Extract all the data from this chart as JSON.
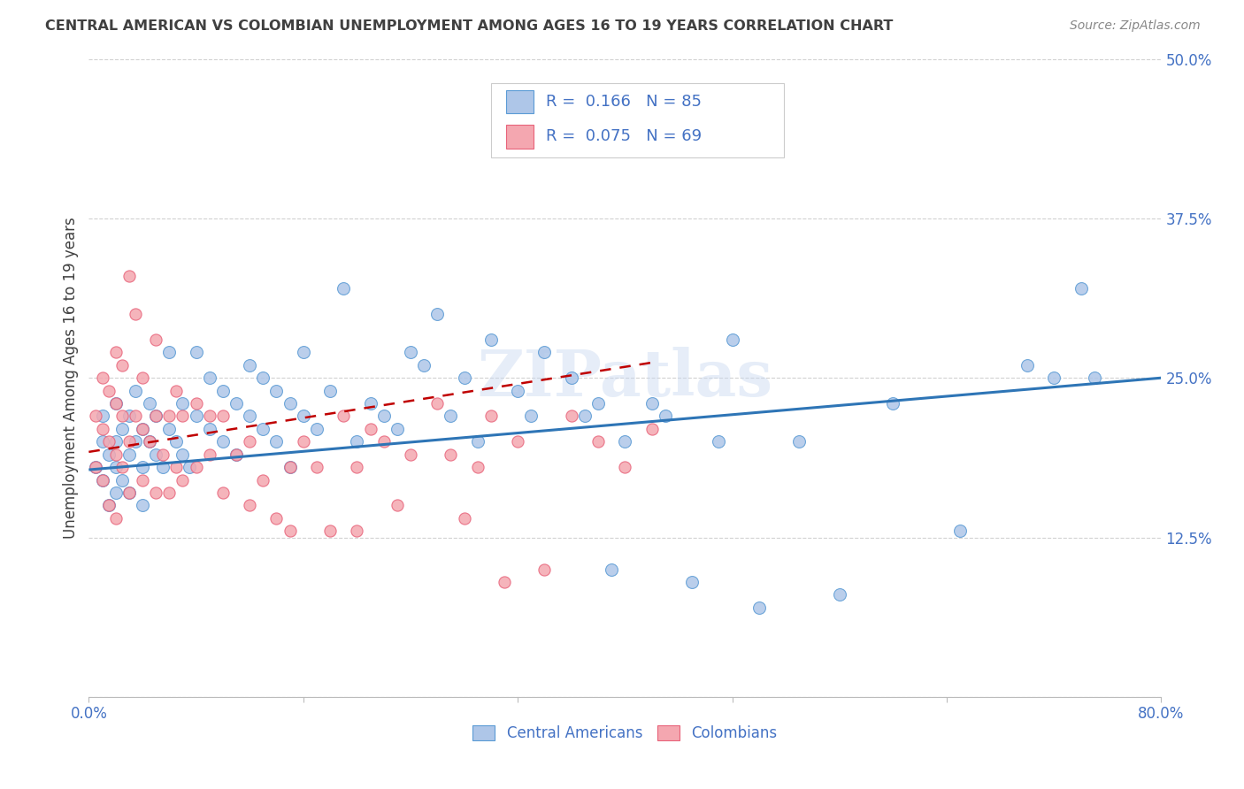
{
  "title": "CENTRAL AMERICAN VS COLOMBIAN UNEMPLOYMENT AMONG AGES 16 TO 19 YEARS CORRELATION CHART",
  "source": "Source: ZipAtlas.com",
  "ylabel": "Unemployment Among Ages 16 to 19 years",
  "xlim": [
    0.0,
    0.8
  ],
  "ylim": [
    0.0,
    0.5
  ],
  "xticks": [
    0.0,
    0.16,
    0.32,
    0.48,
    0.64,
    0.8
  ],
  "xticklabels": [
    "0.0%",
    "",
    "",
    "",
    "",
    "80.0%"
  ],
  "yticks": [
    0.0,
    0.125,
    0.25,
    0.375,
    0.5
  ],
  "yticklabels": [
    "",
    "12.5%",
    "25.0%",
    "37.5%",
    "50.0%"
  ],
  "blue_R": "0.166",
  "blue_N": "85",
  "pink_R": "0.075",
  "pink_N": "69",
  "blue_color": "#AEC6E8",
  "pink_color": "#F4A7B0",
  "blue_edge_color": "#5B9BD5",
  "pink_edge_color": "#E8637A",
  "blue_line_color": "#2E75B6",
  "pink_line_color": "#C00000",
  "legend_color": "#4472C4",
  "watermark": "ZIPatlas",
  "blue_x": [
    0.005,
    0.01,
    0.01,
    0.01,
    0.015,
    0.015,
    0.02,
    0.02,
    0.02,
    0.02,
    0.025,
    0.025,
    0.03,
    0.03,
    0.03,
    0.035,
    0.035,
    0.04,
    0.04,
    0.04,
    0.045,
    0.045,
    0.05,
    0.05,
    0.055,
    0.06,
    0.06,
    0.065,
    0.07,
    0.07,
    0.075,
    0.08,
    0.08,
    0.09,
    0.09,
    0.1,
    0.1,
    0.11,
    0.11,
    0.12,
    0.12,
    0.13,
    0.13,
    0.14,
    0.14,
    0.15,
    0.15,
    0.16,
    0.16,
    0.17,
    0.18,
    0.19,
    0.2,
    0.21,
    0.22,
    0.23,
    0.24,
    0.25,
    0.26,
    0.27,
    0.28,
    0.29,
    0.3,
    0.32,
    0.33,
    0.34,
    0.36,
    0.37,
    0.38,
    0.39,
    0.4,
    0.42,
    0.43,
    0.45,
    0.47,
    0.48,
    0.5,
    0.53,
    0.56,
    0.6,
    0.65,
    0.7,
    0.72,
    0.74,
    0.75
  ],
  "blue_y": [
    0.18,
    0.17,
    0.2,
    0.22,
    0.15,
    0.19,
    0.16,
    0.2,
    0.23,
    0.18,
    0.17,
    0.21,
    0.19,
    0.22,
    0.16,
    0.2,
    0.24,
    0.18,
    0.21,
    0.15,
    0.2,
    0.23,
    0.19,
    0.22,
    0.18,
    0.21,
    0.27,
    0.2,
    0.19,
    0.23,
    0.18,
    0.22,
    0.27,
    0.21,
    0.25,
    0.2,
    0.24,
    0.19,
    0.23,
    0.22,
    0.26,
    0.21,
    0.25,
    0.2,
    0.24,
    0.23,
    0.18,
    0.22,
    0.27,
    0.21,
    0.24,
    0.32,
    0.2,
    0.23,
    0.22,
    0.21,
    0.27,
    0.26,
    0.3,
    0.22,
    0.25,
    0.2,
    0.28,
    0.24,
    0.22,
    0.27,
    0.25,
    0.22,
    0.23,
    0.1,
    0.2,
    0.23,
    0.22,
    0.09,
    0.2,
    0.28,
    0.07,
    0.2,
    0.08,
    0.23,
    0.13,
    0.26,
    0.25,
    0.32,
    0.25
  ],
  "pink_x": [
    0.005,
    0.005,
    0.01,
    0.01,
    0.01,
    0.015,
    0.015,
    0.015,
    0.02,
    0.02,
    0.02,
    0.02,
    0.025,
    0.025,
    0.025,
    0.03,
    0.03,
    0.03,
    0.035,
    0.035,
    0.04,
    0.04,
    0.04,
    0.045,
    0.05,
    0.05,
    0.05,
    0.055,
    0.06,
    0.06,
    0.065,
    0.065,
    0.07,
    0.07,
    0.08,
    0.08,
    0.09,
    0.09,
    0.1,
    0.1,
    0.11,
    0.12,
    0.12,
    0.13,
    0.14,
    0.15,
    0.15,
    0.16,
    0.17,
    0.18,
    0.19,
    0.2,
    0.2,
    0.21,
    0.22,
    0.23,
    0.24,
    0.26,
    0.27,
    0.28,
    0.29,
    0.3,
    0.31,
    0.32,
    0.34,
    0.36,
    0.38,
    0.4,
    0.42
  ],
  "pink_y": [
    0.18,
    0.22,
    0.17,
    0.21,
    0.25,
    0.15,
    0.2,
    0.24,
    0.14,
    0.19,
    0.23,
    0.27,
    0.18,
    0.22,
    0.26,
    0.16,
    0.2,
    0.33,
    0.22,
    0.3,
    0.17,
    0.21,
    0.25,
    0.2,
    0.16,
    0.22,
    0.28,
    0.19,
    0.16,
    0.22,
    0.18,
    0.24,
    0.17,
    0.22,
    0.18,
    0.23,
    0.19,
    0.22,
    0.16,
    0.22,
    0.19,
    0.15,
    0.2,
    0.17,
    0.14,
    0.13,
    0.18,
    0.2,
    0.18,
    0.13,
    0.22,
    0.13,
    0.18,
    0.21,
    0.2,
    0.15,
    0.19,
    0.23,
    0.19,
    0.14,
    0.18,
    0.22,
    0.09,
    0.2,
    0.1,
    0.22,
    0.2,
    0.18,
    0.21
  ],
  "grid_color": "#CCCCCC",
  "title_color": "#404040",
  "axis_color": "#4472C4",
  "background_color": "#FFFFFF",
  "blue_trend_start_x": 0.0,
  "blue_trend_end_x": 0.8,
  "blue_trend_start_y": 0.178,
  "blue_trend_end_y": 0.25,
  "pink_trend_start_x": 0.0,
  "pink_trend_end_x": 0.42,
  "pink_trend_start_y": 0.192,
  "pink_trend_end_y": 0.262
}
